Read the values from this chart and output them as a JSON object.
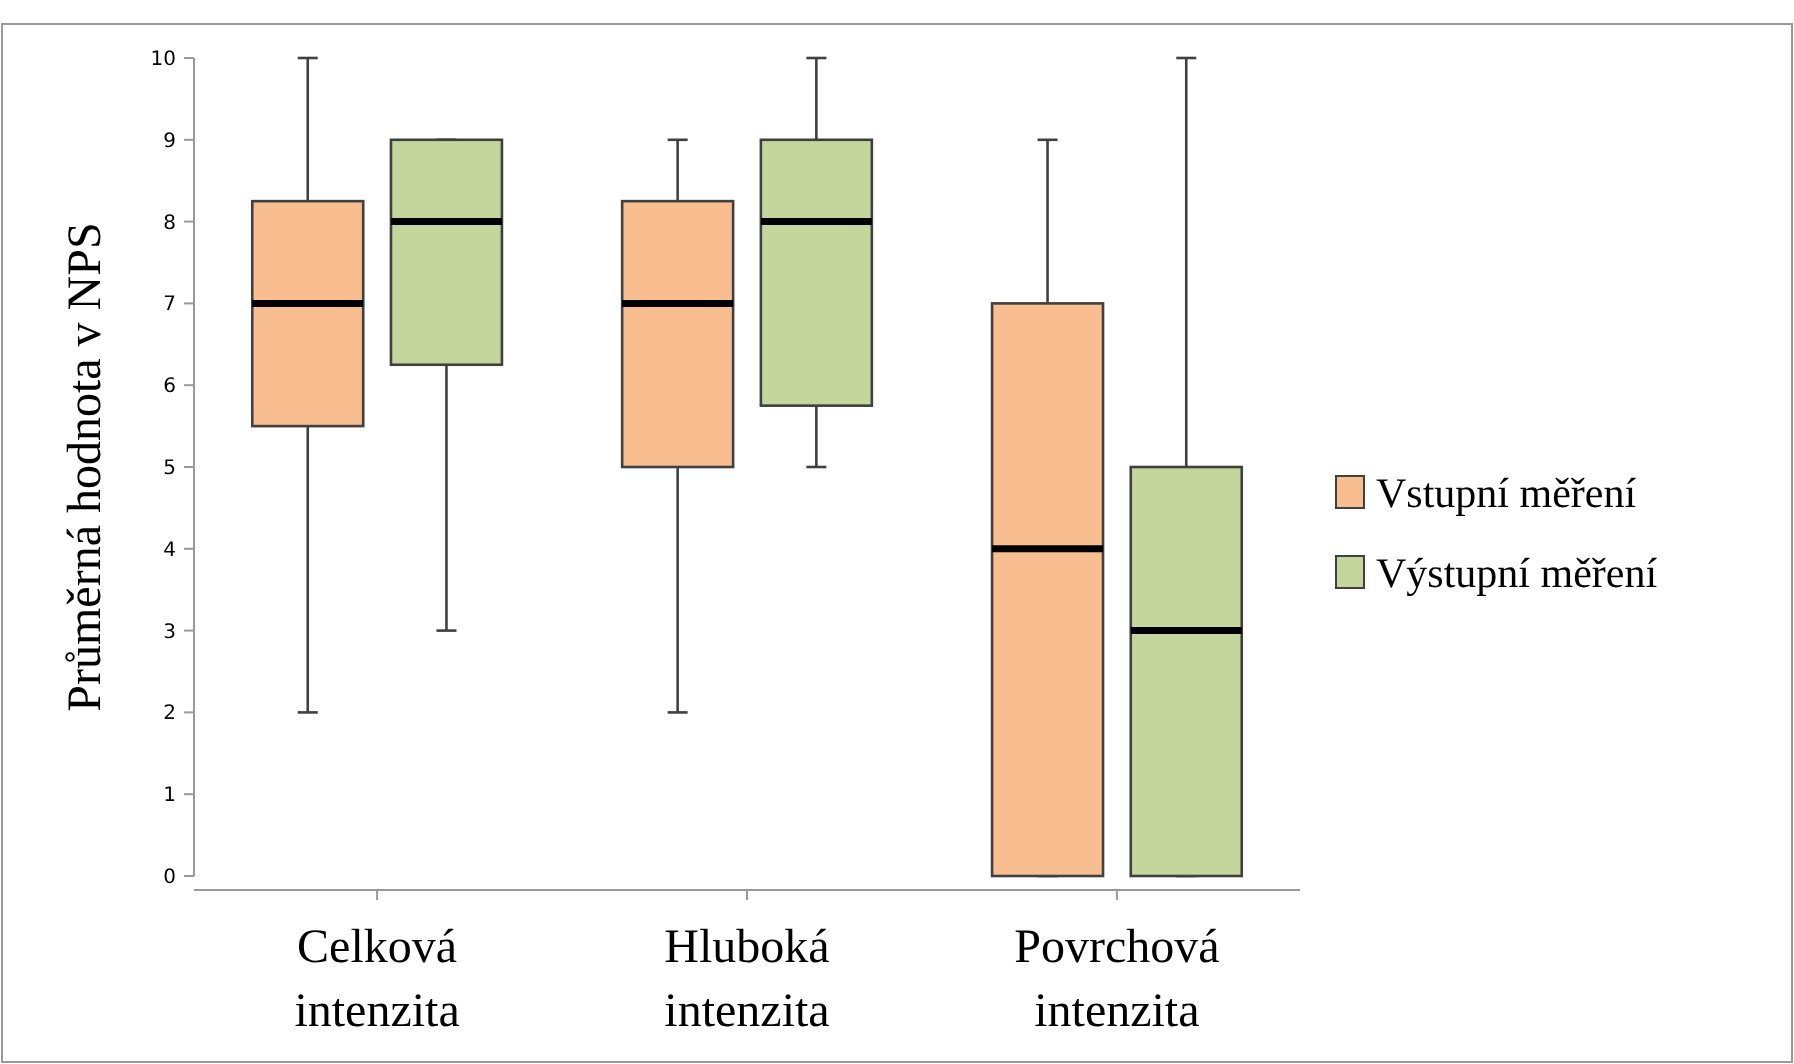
{
  "chart_data": {
    "type": "box",
    "ylabel": "Průměrná hodnota v NPS",
    "categories": [
      "Celková\nintenzita",
      "Hluboká\nintenzita",
      "Povrchová\nintenzita"
    ],
    "series": [
      {
        "name": "Vstupní měření",
        "color": "#f9be8f",
        "boxes": [
          {
            "low": 2,
            "q1": 5.5,
            "median": 7,
            "q3": 8.25,
            "high": 10
          },
          {
            "low": 2,
            "q1": 5,
            "median": 7,
            "q3": 8.25,
            "high": 9
          },
          {
            "low": 0,
            "q1": 0,
            "median": 4,
            "q3": 7,
            "high": 9
          }
        ]
      },
      {
        "name": "Výstupní měření",
        "color": "#c4d69b",
        "boxes": [
          {
            "low": 3,
            "q1": 6.25,
            "median": 8,
            "q3": 9,
            "high": 9
          },
          {
            "low": 5,
            "q1": 5.75,
            "median": 8,
            "q3": 9,
            "high": 10
          },
          {
            "low": 0,
            "q1": 0,
            "median": 3,
            "q3": 5,
            "high": 10
          }
        ]
      }
    ],
    "ylim": [
      0,
      10
    ],
    "yticks": [
      0,
      1,
      2,
      3,
      4,
      5,
      6,
      7,
      8,
      9,
      10
    ],
    "grid": false,
    "legend": "right"
  }
}
